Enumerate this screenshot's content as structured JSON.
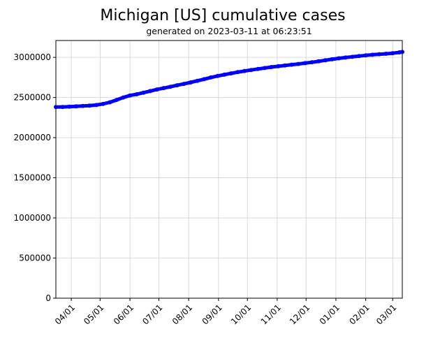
{
  "chart_data": {
    "type": "line",
    "title": "Michigan [US] cumulative cases",
    "subtitle": "generated on 2023-03-11 at 06:23:51",
    "xlabel": "",
    "ylabel": "",
    "xlim": [
      "2022-03-16",
      "2023-03-11"
    ],
    "ylim": [
      0,
      3210000
    ],
    "grid": true,
    "y_ticks": [
      0,
      500000,
      1000000,
      1500000,
      2000000,
      2500000,
      3000000
    ],
    "y_tick_labels": [
      "0",
      "500000",
      "1000000",
      "1500000",
      "2000000",
      "2500000",
      "3000000"
    ],
    "x_ticks": [
      "2022-04-01",
      "2022-05-01",
      "2022-06-01",
      "2022-07-01",
      "2022-08-01",
      "2022-09-01",
      "2022-10-01",
      "2022-11-01",
      "2022-12-01",
      "2023-01-01",
      "2023-02-01",
      "2023-03-01"
    ],
    "x_tick_labels": [
      "04/01",
      "05/01",
      "06/01",
      "07/01",
      "08/01",
      "09/01",
      "10/01",
      "11/01",
      "12/01",
      "01/01",
      "02/01",
      "03/01"
    ],
    "series": [
      {
        "name": "cumulative cases",
        "color": "#0000ff",
        "x": [
          "2022-03-16",
          "2022-03-23",
          "2022-03-30",
          "2022-04-06",
          "2022-04-13",
          "2022-04-20",
          "2022-04-27",
          "2022-05-04",
          "2022-05-11",
          "2022-05-18",
          "2022-05-25",
          "2022-06-01",
          "2022-06-08",
          "2022-06-15",
          "2022-06-22",
          "2022-06-29",
          "2022-07-06",
          "2022-07-13",
          "2022-07-20",
          "2022-07-27",
          "2022-08-03",
          "2022-08-10",
          "2022-08-17",
          "2022-08-24",
          "2022-08-31",
          "2022-09-07",
          "2022-09-14",
          "2022-09-21",
          "2022-09-28",
          "2022-10-05",
          "2022-10-12",
          "2022-10-19",
          "2022-10-26",
          "2022-11-02",
          "2022-11-09",
          "2022-11-16",
          "2022-11-23",
          "2022-11-30",
          "2022-12-07",
          "2022-12-14",
          "2022-12-21",
          "2022-12-28",
          "2023-01-04",
          "2023-01-11",
          "2023-01-18",
          "2023-01-25",
          "2023-02-01",
          "2023-02-08",
          "2023-02-15",
          "2023-02-22",
          "2023-03-01",
          "2023-03-08",
          "2023-03-11"
        ],
        "values": [
          2381000,
          2383000,
          2386000,
          2390000,
          2394000,
          2399000,
          2406000,
          2420000,
          2440000,
          2470000,
          2500000,
          2525000,
          2540000,
          2560000,
          2580000,
          2600000,
          2617000,
          2634000,
          2652000,
          2670000,
          2688000,
          2708000,
          2728000,
          2750000,
          2768000,
          2785000,
          2800000,
          2816000,
          2830000,
          2843000,
          2855000,
          2867000,
          2879000,
          2889000,
          2899000,
          2909000,
          2918000,
          2928000,
          2939000,
          2951000,
          2964000,
          2976000,
          2988000,
          2998000,
          3007000,
          3016000,
          3025000,
          3033000,
          3039000,
          3045000,
          3052000,
          3062000,
          3068000
        ]
      }
    ]
  }
}
